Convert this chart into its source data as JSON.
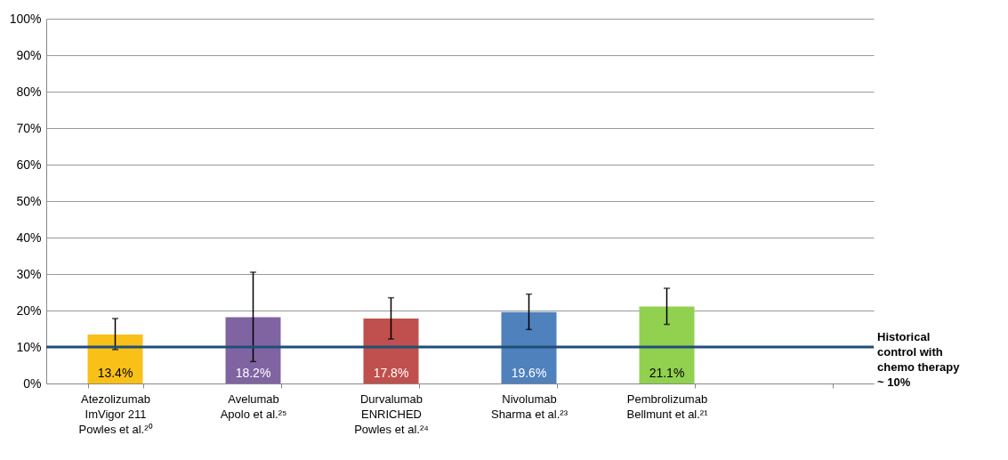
{
  "chart_data": {
    "type": "bar",
    "categories": [
      "Atezolizumab\nImVigor 211\nPowles et al.²⁰",
      "Avelumab\nApolo et al.²⁵",
      "Durvalumab\nENRICHED\nPowles et al.²⁴",
      "Nivolumab\nSharma et al.²³",
      "Pembrolizumab\nBellmunt et al.²¹",
      null
    ],
    "values": [
      13.4,
      18.2,
      17.8,
      19.6,
      21.1,
      null
    ],
    "colors": [
      "#f9c018",
      "#8064a2",
      "#c0504d",
      "#4f81bd",
      "#92d050",
      "#ffffff"
    ],
    "errors": [
      [
        9.3,
        17.8
      ],
      [
        6,
        30.5
      ],
      [
        12.2,
        23.5
      ],
      [
        14.8,
        24.5
      ],
      [
        16.2,
        26.1
      ],
      null
    ],
    "value_labels": [
      "13.4%",
      "18.2%",
      "17.8%",
      "19.6%",
      "21.1%",
      null
    ],
    "ylim": [
      0,
      100
    ],
    "yticks": [
      {
        "value": 0,
        "label": "0%"
      },
      {
        "value": 10,
        "label": "10%"
      },
      {
        "value": 20,
        "label": "20%"
      },
      {
        "value": 30,
        "label": "30%"
      },
      {
        "value": 40,
        "label": "40%"
      },
      {
        "value": 50,
        "label": "50%"
      },
      {
        "value": 60,
        "label": "60%"
      },
      {
        "value": 70,
        "label": "70%"
      },
      {
        "value": 80,
        "label": "80%"
      },
      {
        "value": 90,
        "label": "90%"
      },
      {
        "value": 100,
        "label": "100%"
      }
    ],
    "ref_lines": [
      {
        "axis": "y",
        "value": 10,
        "label": "Historical\ncontrol with\nchemo therapy\n~ 10%",
        "color": "#1f4e79"
      }
    ],
    "grid": "y",
    "legend": false
  }
}
